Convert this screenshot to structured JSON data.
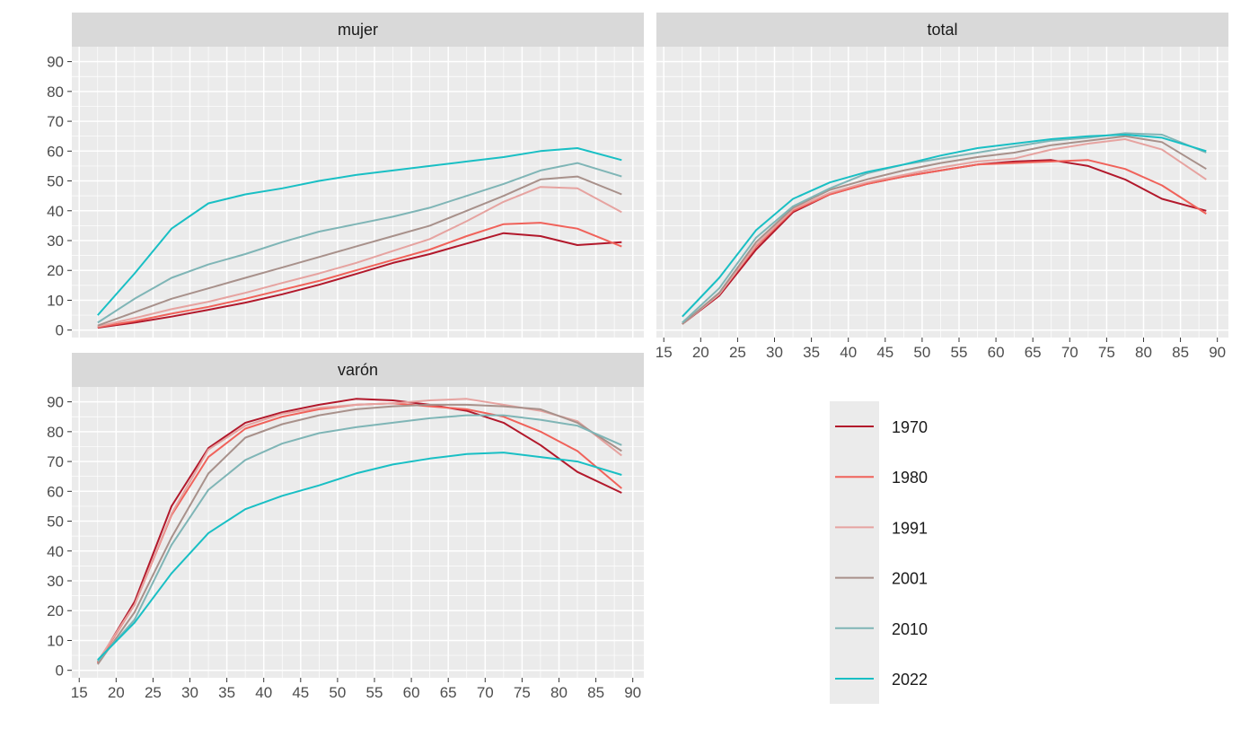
{
  "chart_data": {
    "type": "line",
    "x": [
      17.5,
      22.5,
      27.5,
      32.5,
      37.5,
      42.5,
      47.5,
      52.5,
      57.5,
      62.5,
      67.5,
      72.5,
      77.5,
      82.5,
      88.5
    ],
    "xticks": [
      "15",
      "20",
      "25",
      "30",
      "35",
      "40",
      "45",
      "50",
      "55",
      "60",
      "65",
      "70",
      "75",
      "80",
      "85",
      "90"
    ],
    "yticks": [
      "0",
      "10",
      "20",
      "30",
      "40",
      "50",
      "60",
      "70",
      "80",
      "90"
    ],
    "xlim": [
      14,
      91.5
    ],
    "ylim": [
      -2.5,
      95
    ],
    "grid": true,
    "legend_position": "right",
    "legend": [
      {
        "name": "1970",
        "color": "#b2182b"
      },
      {
        "name": "1980",
        "color": "#f0625a"
      },
      {
        "name": "1991",
        "color": "#e6a3a0"
      },
      {
        "name": "2001",
        "color": "#a8918b"
      },
      {
        "name": "2010",
        "color": "#7fb5b6"
      },
      {
        "name": "2022",
        "color": "#19bfc4"
      }
    ],
    "panels": [
      {
        "title": "mujer",
        "series": [
          {
            "name": "1970",
            "values": [
              0.8,
              2.5,
              4.5,
              6.8,
              9.2,
              12,
              15.2,
              18.8,
              22.5,
              25.5,
              29,
              32.5,
              31.5,
              28.5,
              29.5
            ]
          },
          {
            "name": "1980",
            "values": [
              1,
              3,
              5.5,
              7.8,
              10.5,
              13.5,
              16.5,
              20,
              23.5,
              27,
              31.5,
              35.5,
              36,
              34,
              28
            ]
          },
          {
            "name": "1991",
            "values": [
              1.2,
              4,
              7,
              9.5,
              12.5,
              15.8,
              19,
              22.5,
              26.5,
              30.5,
              36.5,
              43,
              48,
              47.5,
              39.5
            ]
          },
          {
            "name": "2001",
            "values": [
              1.5,
              6,
              10.5,
              14,
              17.5,
              21,
              24.5,
              28,
              31.5,
              35,
              40,
              45,
              50.5,
              51.5,
              45.5
            ]
          },
          {
            "name": "2010",
            "values": [
              2.5,
              10.5,
              17.5,
              22,
              25.5,
              29.5,
              33,
              35.5,
              38,
              41,
              45,
              49,
              53.5,
              56,
              51.5
            ]
          },
          {
            "name": "2022",
            "values": [
              5,
              19,
              34,
              42.5,
              45.5,
              47.5,
              50,
              52,
              53.5,
              55,
              56.5,
              58,
              60,
              61,
              57
            ]
          }
        ]
      },
      {
        "title": "total",
        "series": [
          {
            "name": "1970",
            "values": [
              2,
              11.5,
              27,
              39.5,
              45.5,
              49,
              51.5,
              53.5,
              55.5,
              56.5,
              57,
              55,
              50.5,
              44,
              40
            ]
          },
          {
            "name": "1980",
            "values": [
              2,
              12,
              28,
              40,
              45.5,
              49,
              51.5,
              53.5,
              55.5,
              56,
              56.5,
              57,
              54,
              48.5,
              39
            ]
          },
          {
            "name": "1991",
            "values": [
              2,
              12,
              28.5,
              40.5,
              46,
              49.5,
              52,
              54.5,
              56.5,
              57.5,
              60.5,
              62.5,
              64,
              60.5,
              50.5
            ]
          },
          {
            "name": "2001",
            "values": [
              2,
              12.5,
              29.5,
              41,
              47,
              50.5,
              53.5,
              56,
              58,
              59.5,
              62,
              63.5,
              65,
              63,
              54
            ]
          },
          {
            "name": "2010",
            "values": [
              2.5,
              14,
              31,
              41.5,
              47.5,
              52.5,
              55.5,
              57.5,
              59.5,
              61.5,
              63.5,
              64.5,
              66,
              65.5,
              59.5
            ]
          },
          {
            "name": "2022",
            "values": [
              4.5,
              17.5,
              33.5,
              44,
              49.5,
              53,
              55.5,
              58.5,
              61,
              62.5,
              64,
              65,
              65.5,
              64.5,
              60
            ]
          }
        ]
      },
      {
        "title": "varón",
        "series": [
          {
            "name": "1970",
            "values": [
              2.5,
              23,
              55,
              74.5,
              83,
              86.5,
              89,
              91,
              90.5,
              89,
              87,
              83,
              75.5,
              66.5,
              59.5
            ]
          },
          {
            "name": "1980",
            "values": [
              2.5,
              22,
              52,
              71.5,
              81,
              85,
              87.5,
              89,
              89.5,
              88.5,
              87.5,
              85,
              80,
              73.5,
              61
            ]
          },
          {
            "name": "1991",
            "values": [
              3,
              22,
              52.5,
              74,
              82,
              86,
              88,
              89,
              89.5,
              90.5,
              91,
              89,
              87,
              83.5,
              72
            ]
          },
          {
            "name": "2001",
            "values": [
              2,
              19.5,
              44.5,
              66,
              78,
              82.5,
              85.5,
              87.5,
              88.5,
              89,
              89,
              88.5,
              87.5,
              83,
              73.5
            ]
          },
          {
            "name": "2010",
            "values": [
              3,
              17,
              42,
              60.5,
              70.5,
              76,
              79.5,
              81.5,
              83,
              84.5,
              85.5,
              85.5,
              84,
              82,
              75.5
            ]
          },
          {
            "name": "2022",
            "values": [
              3.5,
              16,
              32.5,
              46,
              54,
              58.5,
              62,
              66,
              69,
              71,
              72.5,
              73,
              71.5,
              70,
              65.5
            ]
          }
        ]
      }
    ]
  }
}
